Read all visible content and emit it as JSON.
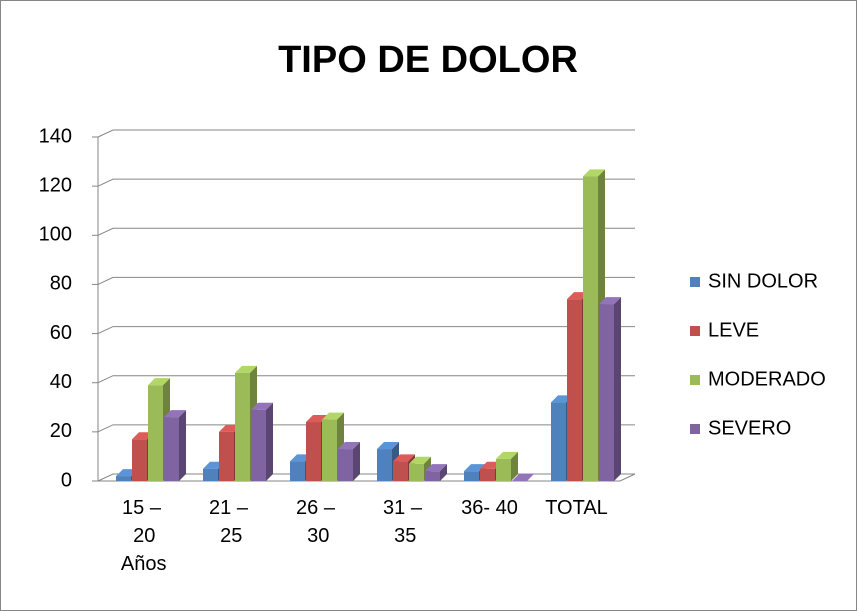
{
  "chart_data": {
    "type": "bar3d",
    "title": "TIPO DE DOLOR",
    "categories": [
      "15 – 20 Años",
      "21 – 25",
      "26 – 30",
      "31 – 35",
      "36- 40",
      "TOTAL"
    ],
    "series": [
      {
        "name": "SIN DOLOR",
        "color": "#4f81bd",
        "values": [
          2,
          5,
          8,
          13,
          4,
          32
        ]
      },
      {
        "name": "LEVE",
        "color": "#c0504d",
        "values": [
          17,
          20,
          24,
          8,
          5,
          74
        ]
      },
      {
        "name": "MODERADO",
        "color": "#9bbb59",
        "values": [
          39,
          44,
          25,
          7,
          9,
          124
        ]
      },
      {
        "name": "SEVERO",
        "color": "#8064a2",
        "values": [
          26,
          29,
          13,
          4,
          0,
          72
        ]
      }
    ],
    "ylim": [
      0,
      140
    ],
    "yticks": [
      0,
      20,
      40,
      60,
      80,
      100,
      120,
      140
    ],
    "grid": true,
    "legend": "right"
  }
}
